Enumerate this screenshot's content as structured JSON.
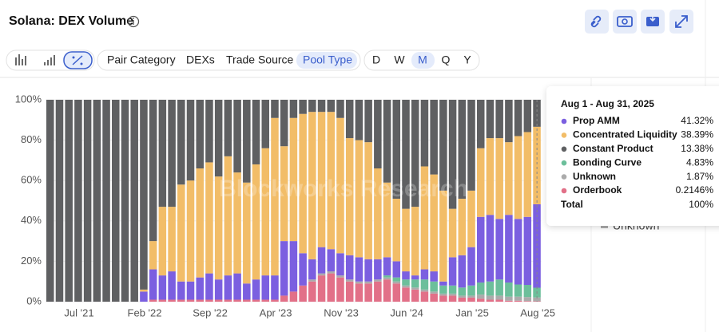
{
  "header": {
    "title": "Solana: DEX Volume"
  },
  "toolbar": {
    "groupings": [
      "Pair Category",
      "DEXs",
      "Trade Source",
      "Pool Type"
    ],
    "intervals": [
      "D",
      "W",
      "M",
      "Q",
      "Y"
    ]
  },
  "chart_data": {
    "type": "stacked-bar",
    "watermark": "Blockworks Research",
    "categories": [
      null,
      null,
      null,
      "Jul '21",
      null,
      null,
      null,
      null,
      null,
      null,
      "Feb '22",
      null,
      null,
      null,
      null,
      null,
      null,
      "Sep '22",
      null,
      null,
      null,
      null,
      null,
      null,
      "Apr '23",
      null,
      null,
      null,
      null,
      null,
      null,
      "Nov '23",
      null,
      null,
      null,
      null,
      null,
      null,
      "Jun '24",
      null,
      null,
      null,
      null,
      null,
      null,
      "Jan '25",
      null,
      null,
      null,
      null,
      null,
      null,
      "Aug '25"
    ],
    "ylim": [
      0,
      100
    ],
    "yticks": [
      {
        "value": 0,
        "label": "0%"
      },
      {
        "value": 20,
        "label": "20%"
      },
      {
        "value": 40,
        "label": "40%"
      },
      {
        "value": 60,
        "label": "60%"
      },
      {
        "value": 80,
        "label": "80%"
      },
      {
        "value": 100,
        "label": "100%"
      }
    ],
    "series": [
      {
        "name": "Prop AMM",
        "color": "#7b5fe0",
        "values": [
          0,
          0,
          0,
          0,
          0,
          0,
          0,
          0,
          0,
          0,
          5,
          15,
          12,
          14,
          9,
          9,
          11,
          13,
          10,
          12,
          13,
          8,
          10,
          12,
          12,
          27,
          25,
          16,
          10,
          13,
          11,
          11,
          12,
          12,
          11,
          10,
          9,
          8,
          4,
          2,
          5,
          5,
          2,
          14,
          16,
          19,
          32.5,
          33,
          30,
          33.5,
          32.5,
          33.7,
          41.32
        ],
        "value_labels": [
          null,
          null,
          null,
          null,
          null,
          null,
          null,
          null,
          null,
          null,
          null,
          null,
          null,
          null,
          null,
          null,
          null,
          null,
          null,
          null,
          null,
          null,
          null,
          null,
          null,
          null,
          null,
          null,
          null,
          null,
          null,
          null,
          null,
          null,
          null,
          null,
          null,
          null,
          null,
          null,
          null,
          null,
          null,
          null,
          null,
          null,
          null,
          null,
          null,
          null,
          null,
          null,
          "41.32%"
        ]
      },
      {
        "name": "Concentrated Liquidity",
        "color": "#f2bd68",
        "values": [
          0,
          0,
          0,
          0,
          0,
          0,
          0,
          0,
          0,
          0,
          1,
          14,
          34,
          32,
          48,
          50,
          54,
          55,
          51,
          59,
          50,
          50,
          57,
          63,
          78,
          47,
          61,
          69,
          73,
          67,
          68,
          67,
          58,
          58,
          58,
          45,
          37,
          31,
          31,
          34,
          51,
          48,
          45,
          24,
          28,
          28,
          34,
          38,
          40,
          36,
          41,
          42,
          38.39
        ],
        "value_labels": [
          null,
          null,
          null,
          null,
          null,
          null,
          null,
          null,
          null,
          null,
          null,
          null,
          null,
          null,
          null,
          null,
          null,
          null,
          null,
          null,
          null,
          null,
          null,
          null,
          null,
          null,
          null,
          null,
          null,
          null,
          null,
          null,
          null,
          null,
          null,
          null,
          null,
          null,
          null,
          null,
          null,
          null,
          null,
          null,
          null,
          null,
          null,
          null,
          null,
          null,
          null,
          null,
          "38.39%"
        ]
      },
      {
        "name": "Constant Product",
        "color": "#5f6062",
        "values": [
          100,
          100,
          100,
          100,
          100,
          100,
          100,
          100,
          100,
          100,
          94,
          70,
          53,
          53,
          42,
          40,
          34,
          31,
          38,
          28,
          36,
          41,
          32,
          24,
          9,
          23,
          9,
          7,
          6,
          6,
          6,
          9,
          19,
          20,
          21,
          34,
          41,
          49,
          54,
          53,
          33,
          37,
          45,
          54,
          49,
          45,
          24,
          19,
          19,
          21,
          18,
          16,
          13.38
        ],
        "value_labels": [
          null,
          null,
          null,
          null,
          null,
          null,
          null,
          null,
          null,
          null,
          null,
          null,
          null,
          null,
          null,
          null,
          null,
          null,
          null,
          null,
          null,
          null,
          null,
          null,
          null,
          null,
          null,
          null,
          null,
          null,
          null,
          null,
          null,
          null,
          null,
          null,
          null,
          null,
          null,
          null,
          null,
          null,
          null,
          null,
          null,
          null,
          null,
          null,
          null,
          null,
          null,
          null,
          "13.38%"
        ]
      },
      {
        "name": "Bonding Curve",
        "color": "#6cbf9b",
        "values": [
          0,
          0,
          0,
          0,
          0,
          0,
          0,
          0,
          0,
          0,
          0,
          0,
          0,
          0,
          0,
          0,
          0,
          0,
          0,
          0,
          0,
          0,
          0,
          0,
          0,
          0,
          0,
          0,
          0,
          0,
          0,
          0,
          0,
          0,
          0,
          0,
          1,
          2,
          3,
          4,
          5,
          5,
          4,
          4,
          4,
          5,
          6,
          7,
          8,
          7,
          6,
          6,
          4.83
        ],
        "value_labels": [
          null,
          null,
          null,
          null,
          null,
          null,
          null,
          null,
          null,
          null,
          null,
          null,
          null,
          null,
          null,
          null,
          null,
          null,
          null,
          null,
          null,
          null,
          null,
          null,
          null,
          null,
          null,
          null,
          null,
          null,
          null,
          null,
          null,
          null,
          null,
          null,
          null,
          null,
          null,
          null,
          null,
          null,
          null,
          null,
          null,
          null,
          null,
          null,
          null,
          null,
          null,
          null,
          "4.83%"
        ]
      },
      {
        "name": "Unknown",
        "color": "#ababab",
        "values": [
          0,
          0,
          0,
          0,
          0,
          0,
          0,
          0,
          0,
          0,
          0,
          0,
          0,
          0,
          0,
          0,
          0,
          0,
          0,
          0,
          0,
          0,
          0,
          0,
          0,
          0,
          0,
          0,
          1,
          1,
          1,
          1,
          1,
          1,
          1,
          1,
          1,
          1,
          1,
          1,
          1,
          1,
          1,
          1,
          1,
          1,
          2,
          2,
          2,
          2,
          2,
          2,
          1.87
        ],
        "value_labels": [
          null,
          null,
          null,
          null,
          null,
          null,
          null,
          null,
          null,
          null,
          null,
          null,
          null,
          null,
          null,
          null,
          null,
          null,
          null,
          null,
          null,
          null,
          null,
          null,
          null,
          null,
          null,
          null,
          null,
          null,
          null,
          null,
          null,
          null,
          null,
          null,
          null,
          null,
          null,
          null,
          null,
          null,
          null,
          null,
          null,
          null,
          null,
          null,
          null,
          null,
          null,
          null,
          "1.87%"
        ]
      },
      {
        "name": "Orderbook",
        "color": "#e27088",
        "values": [
          0,
          0,
          0,
          0,
          0,
          0,
          0,
          0,
          0,
          0,
          0,
          1,
          1,
          1,
          1,
          1,
          1,
          1,
          1,
          1,
          1,
          1,
          1,
          1,
          1,
          3,
          5,
          8,
          10,
          13,
          14,
          12,
          10,
          9,
          9,
          10,
          11,
          9,
          7,
          6,
          5,
          4,
          3,
          3,
          2,
          2,
          1.5,
          1,
          1,
          0.5,
          0.5,
          0.3,
          0.2146
        ],
        "value_labels": [
          null,
          null,
          null,
          null,
          null,
          null,
          null,
          null,
          null,
          null,
          null,
          null,
          null,
          null,
          null,
          null,
          null,
          null,
          null,
          null,
          null,
          null,
          null,
          null,
          null,
          null,
          null,
          null,
          null,
          null,
          null,
          null,
          null,
          null,
          null,
          null,
          null,
          null,
          null,
          null,
          null,
          null,
          null,
          null,
          null,
          null,
          null,
          null,
          null,
          null,
          null,
          null,
          "0.2146%"
        ]
      }
    ],
    "tooltip": {
      "title": "Aug 1 - Aug 31, 2025",
      "total": "Total",
      "total_value": "100%"
    }
  }
}
